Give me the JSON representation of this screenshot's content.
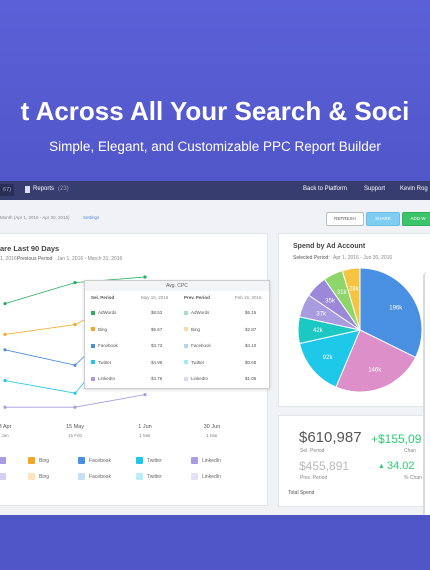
{
  "hero": {
    "title": "t Across All Your Search & Soci",
    "subtitle": "Simple, Elegant, and Customizable PPC Report Builder"
  },
  "nav": {
    "count": "67)",
    "reports": "Reports",
    "reports_count": "(23)",
    "links": [
      "Back to Platform",
      "Support",
      "Kevin Rog"
    ]
  },
  "toolbar": {
    "period": "Month (Apr 1, 2016 - Apr 30, 2016)",
    "settings": "Settings",
    "buttons": [
      "REFRESH",
      "SHARE",
      "ADD W"
    ]
  },
  "trend": {
    "title": "are Last 90 Days",
    "selected": "1, 2016",
    "previous_label": "Previous Period",
    "previous": "Jan 1, 2016 - March 31, 2016",
    "chart": {
      "type": "line",
      "categories": [
        "3 Apr",
        "15 May",
        "1 Jun",
        "30 Jun"
      ],
      "prev_categories": [
        "Jan",
        "15 Feb",
        "1 Mar",
        "1 Mar"
      ],
      "ylim": [
        0,
        100
      ],
      "series": [
        {
          "name": "AdWords",
          "color": "#27ae60",
          "values": [
            76,
            91,
            95,
            null
          ]
        },
        {
          "name": "Bing",
          "color": "#f5a623",
          "values": [
            54,
            61,
            86,
            null
          ]
        },
        {
          "name": "Facebook",
          "color": "#4a90e2",
          "values": [
            43,
            32,
            79,
            null
          ]
        },
        {
          "name": "Twitter",
          "color": "#1ec8e8",
          "values": [
            21,
            12,
            71,
            null
          ]
        },
        {
          "name": "LinkedIn",
          "color": "#a99be0",
          "values": [
            2,
            2,
            11,
            null
          ]
        }
      ]
    },
    "legend": [
      [
        "Bing",
        "Facebook",
        "Twitter",
        "LinkedIn"
      ],
      [
        "Bing",
        "Facebook",
        "Twitter",
        "LinkedIn"
      ]
    ]
  },
  "tooltip": {
    "title": "Avg. CPC",
    "columns": [
      "Sel. Period",
      "May 15, 2016",
      "Prev. Period",
      "Feb 15, 2016"
    ],
    "rows": [
      [
        "AdWords",
        "$8.53",
        "AdWords",
        "$6.15"
      ],
      [
        "Bing",
        "$5.67",
        "Bing",
        "$2.87"
      ],
      [
        "Facebook",
        "$3.73",
        "Facebook",
        "$4.10"
      ],
      [
        "Twitter",
        "$4.98",
        "Twitter",
        "$0.68"
      ],
      [
        "LinkedIn",
        "$3.76",
        "LinkedIn",
        "$1.06"
      ]
    ]
  },
  "spend": {
    "title": "Spend by Ad Account",
    "period_label": "Selected Period:",
    "period": "Apr 1, 2016 - Jun 30, 2016",
    "chart": {
      "type": "pie",
      "values": [
        196000,
        146000,
        92000,
        42000,
        37000,
        35000,
        31000,
        28000
      ],
      "value_labels": [
        "196k",
        "146k",
        "92k",
        "42k",
        "37k",
        "35k",
        "31k",
        "28k"
      ],
      "colors": [
        "#4a90e2",
        "#dc8fc8",
        "#1ec8e8",
        "#1cc9c2",
        "#a99be0",
        "#9b88d8",
        "#8ed66a",
        "#f5c542"
      ]
    }
  },
  "summary": {
    "current": "$610,987",
    "current_label": "Sel. Period",
    "change": "+$155,09",
    "change_label": "Chan",
    "previous": "$455,891",
    "previous_label": "Prev. Period",
    "pct": "34.02",
    "pct_label": "% Chan",
    "footer": "Total Spend"
  }
}
